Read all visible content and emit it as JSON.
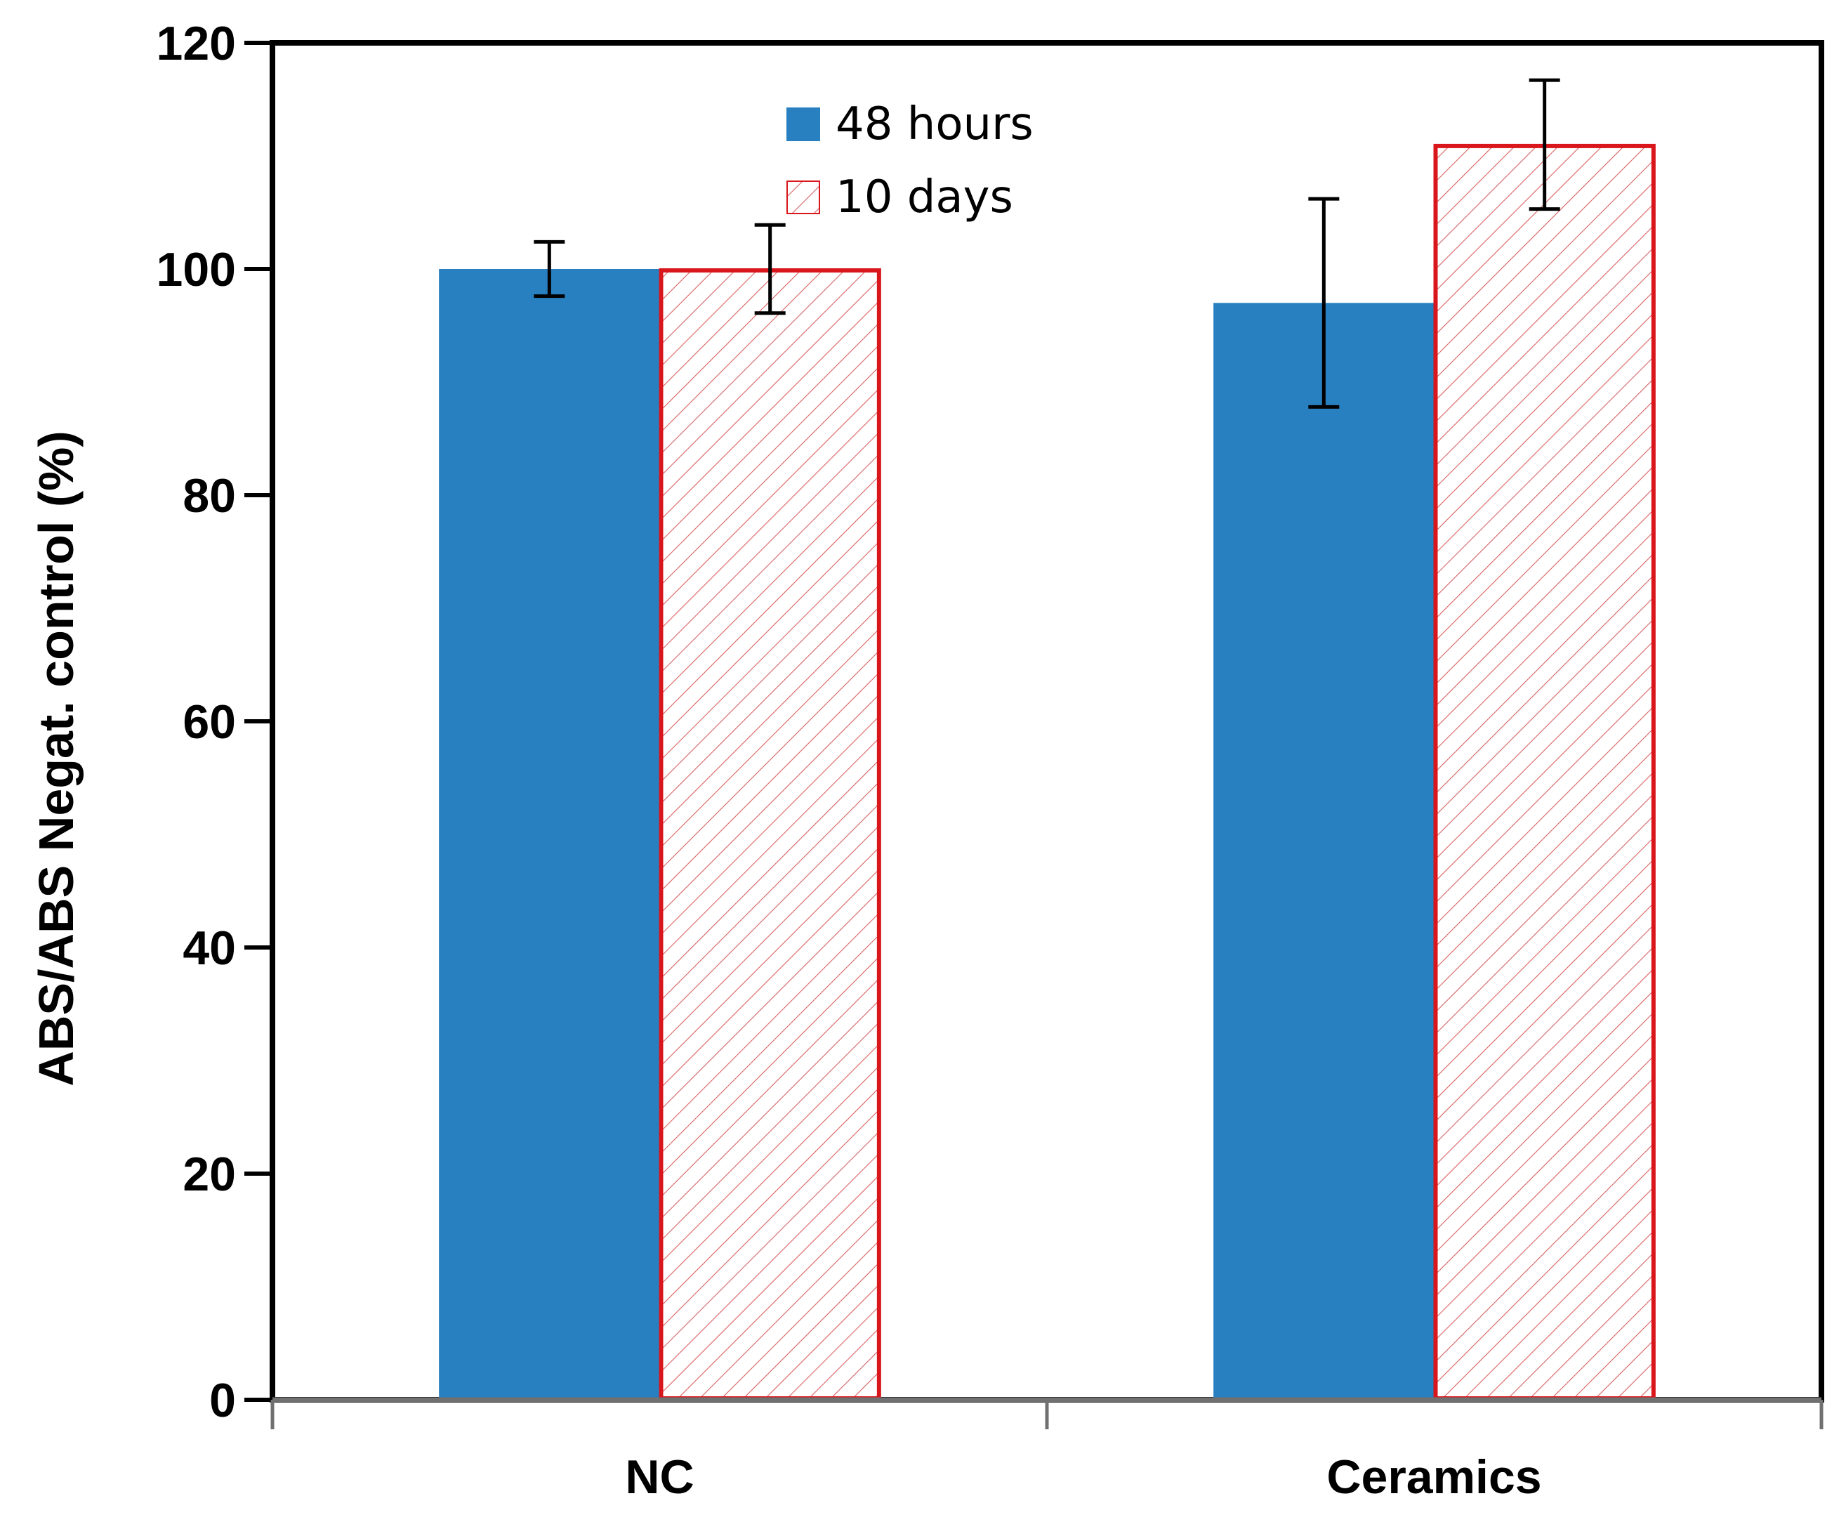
{
  "chart_data": {
    "type": "bar",
    "title": "",
    "xlabel": "",
    "ylabel": "ABS/ABS Negat. control (%)",
    "ylim": [
      0,
      120
    ],
    "yticks": [
      "0",
      "20",
      "40",
      "60",
      "80",
      "100",
      "120"
    ],
    "categories": [
      "NC",
      "Ceramics"
    ],
    "series": [
      {
        "name": "48 hours",
        "values": [
          100,
          97
        ],
        "errors": [
          2.4,
          9.2
        ],
        "color": "#2880c0",
        "pattern": "solid"
      },
      {
        "name": "10 days",
        "values": [
          100,
          111
        ],
        "errors": [
          3.9,
          5.7
        ],
        "color": "#d8161c",
        "pattern": "hatched"
      }
    ],
    "legend": "top-center",
    "grid": false
  }
}
